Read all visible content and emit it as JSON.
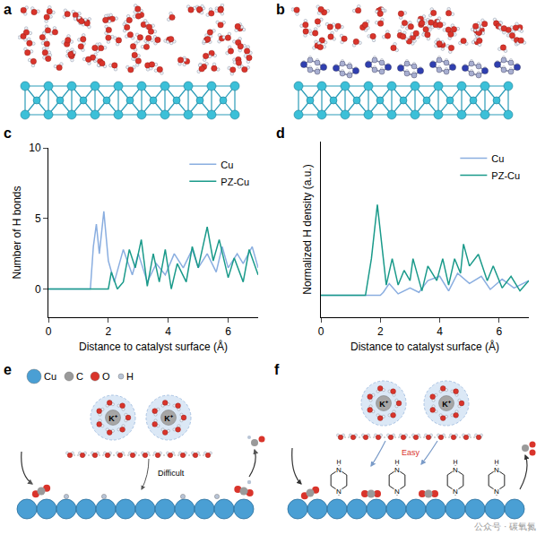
{
  "panel_labels": [
    "a",
    "b",
    "c",
    "d",
    "e",
    "f"
  ],
  "chart_data": [
    {
      "type": "line",
      "x_label": "Distance to catalyst surface (Å)",
      "y_label": "Number of H bonds",
      "xlim": [
        0,
        7
      ],
      "xticks": [
        0,
        2,
        4,
        6
      ],
      "ylim": [
        -2,
        10
      ],
      "yticks": [
        0,
        5,
        10
      ],
      "legend": "upper right",
      "series": [
        {
          "name": "Cu",
          "color": "#8aaee0",
          "x": [
            0,
            1.4,
            1.5,
            1.6,
            1.7,
            1.85,
            2.0,
            2.2,
            2.5,
            2.8,
            3.0,
            3.3,
            3.6,
            3.9,
            4.2,
            4.5,
            4.8,
            5.0,
            5.3,
            5.6,
            5.8,
            6.0,
            6.3,
            6.5,
            6.8,
            7
          ],
          "values": [
            0,
            0,
            3.0,
            4.6,
            2.5,
            5.5,
            2.0,
            0.5,
            2.8,
            1.0,
            2.5,
            0.5,
            1.8,
            1.0,
            2.5,
            1.5,
            2.8,
            1.5,
            2.5,
            1.2,
            3.0,
            1.5,
            2.5,
            1.8,
            3.0,
            1.5
          ]
        },
        {
          "name": "PZ-Cu",
          "color": "#1a9a8a",
          "x": [
            0,
            2.0,
            2.1,
            2.3,
            2.5,
            2.7,
            2.9,
            3.1,
            3.3,
            3.5,
            3.7,
            3.9,
            4.1,
            4.3,
            4.6,
            4.8,
            5.0,
            5.3,
            5.5,
            5.7,
            6.0,
            6.2,
            6.5,
            6.7,
            7
          ],
          "values": [
            0,
            0,
            1.2,
            0,
            0.5,
            2.8,
            1.5,
            3.5,
            0.2,
            2.5,
            0.5,
            2.8,
            0,
            1.8,
            0.5,
            3.0,
            1.5,
            4.4,
            2.0,
            3.5,
            0.8,
            2.2,
            0.5,
            2.8,
            1.0
          ]
        }
      ]
    },
    {
      "type": "line",
      "x_label": "Distance to catalyst surface (Å)",
      "y_label": "Normalized H density (a.u.)",
      "xlim": [
        0,
        7
      ],
      "xticks": [
        0,
        2,
        4,
        6
      ],
      "ylim": [
        -2,
        10
      ],
      "tick_labels": "x",
      "legend": "upper right",
      "series": [
        {
          "name": "Cu",
          "color": "#8aaee0",
          "x": [
            0,
            2.0,
            2.1,
            2.3,
            2.6,
            3.0,
            3.3,
            3.6,
            4.0,
            4.3,
            4.6,
            5.0,
            5.4,
            5.7,
            6.1,
            6.5,
            7
          ],
          "values": [
            -0.5,
            -0.5,
            -0.3,
            0.3,
            -0.4,
            0,
            -0.3,
            0.5,
            0.8,
            -0.2,
            1.0,
            0.3,
            0.8,
            -0.1,
            0.6,
            0,
            0.5
          ]
        },
        {
          "name": "PZ-Cu",
          "color": "#1a9a8a",
          "x": [
            0,
            1.5,
            1.7,
            1.9,
            2.2,
            2.4,
            2.6,
            2.8,
            3.0,
            3.1,
            3.4,
            3.6,
            3.9,
            4.1,
            4.3,
            4.5,
            4.7,
            4.8,
            5.0,
            5.3,
            5.6,
            5.8,
            6.1,
            6.4,
            6.7,
            7
          ],
          "values": [
            -0.5,
            -0.5,
            2.0,
            5.7,
            0.2,
            2.0,
            0.2,
            1.2,
            0.5,
            2.0,
            -0.2,
            1.5,
            0.5,
            2.0,
            0.2,
            2.0,
            1.0,
            3.0,
            1.5,
            2.3,
            0.5,
            1.5,
            0,
            0.8,
            -0.2,
            0.5
          ]
        }
      ]
    }
  ],
  "diagram": {
    "legend": [
      {
        "label": "Cu",
        "color": "#4a9fd4"
      },
      {
        "label": "C",
        "color": "#9a9a9a"
      },
      {
        "label": "O",
        "color": "#d9342b"
      },
      {
        "label": "H",
        "color": "#b8c4d6"
      }
    ],
    "cation": "K⁺",
    "ring_atoms": [
      "N",
      "H"
    ],
    "e_note": "Difficult",
    "f_note": "Easy",
    "watermark": "公众号 · 碳氧氮"
  }
}
